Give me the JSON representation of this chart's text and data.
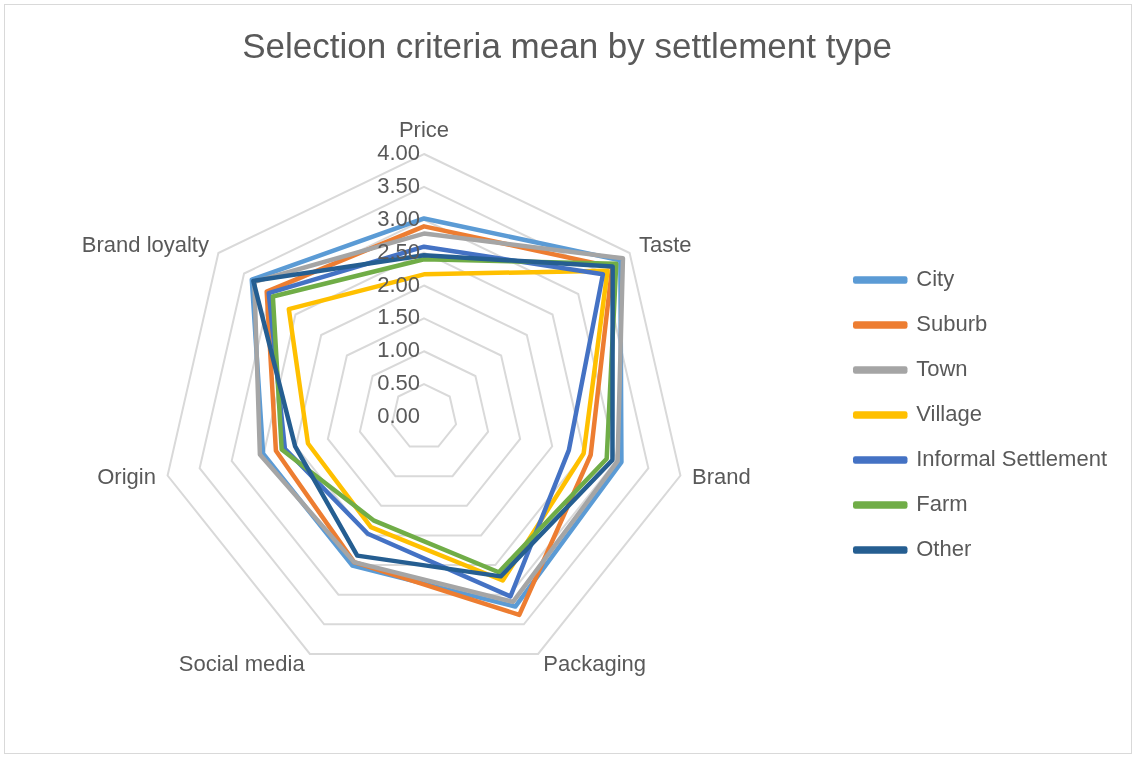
{
  "chart_data": {
    "type": "radar",
    "title": "Selection criteria mean by settlement type",
    "categories": [
      "Price",
      "Taste",
      "Brand",
      "Packaging",
      "Social media",
      "Origin",
      "Brand loyalty"
    ],
    "series": [
      {
        "name": "City",
        "color": "#5b9bd5",
        "values": [
          3.02,
          3.82,
          3.08,
          3.2,
          2.51,
          2.51,
          3.35
        ]
      },
      {
        "name": "Suburb",
        "color": "#ed7d31",
        "values": [
          2.9,
          3.66,
          2.6,
          3.34,
          2.45,
          2.31,
          3.06
        ]
      },
      {
        "name": "Town",
        "color": "#a5a5a5",
        "values": [
          2.79,
          3.87,
          3.02,
          3.12,
          2.45,
          2.56,
          3.3
        ]
      },
      {
        "name": "Village",
        "color": "#ffc000",
        "values": [
          2.17,
          3.57,
          2.49,
          2.76,
          1.86,
          1.81,
          2.63
        ]
      },
      {
        "name": "Informal Settlement",
        "color": "#4472c4",
        "values": [
          2.59,
          3.48,
          2.26,
          3.03,
          1.97,
          2.17,
          3.02
        ]
      },
      {
        "name": "Farm",
        "color": "#70ad47",
        "values": [
          2.4,
          3.74,
          2.85,
          2.62,
          1.75,
          2.22,
          2.94
        ]
      },
      {
        "name": "Other",
        "color": "#255e91",
        "values": [
          2.46,
          3.67,
          2.94,
          2.69,
          2.34,
          2.01,
          3.32
        ]
      }
    ],
    "ylim": [
      0,
      4
    ],
    "yticks": [
      {
        "value": 0,
        "label": "0.00"
      },
      {
        "value": 0.5,
        "label": "0.50"
      },
      {
        "value": 1,
        "label": "1.00"
      },
      {
        "value": 1.5,
        "label": "1.50"
      },
      {
        "value": 2,
        "label": "2.00"
      },
      {
        "value": 2.5,
        "label": "2.50"
      },
      {
        "value": 3,
        "label": "3.00"
      },
      {
        "value": 3.5,
        "label": "3.50"
      },
      {
        "value": 4,
        "label": "4.00"
      }
    ],
    "grid": true,
    "legend": "right",
    "marker": "none",
    "line_style": "solid"
  }
}
